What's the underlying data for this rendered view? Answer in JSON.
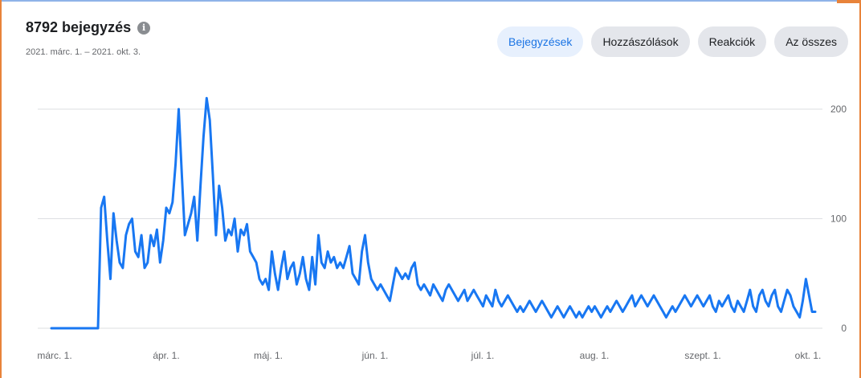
{
  "header": {
    "title": "8792 bejegyzés",
    "info_icon": "info-icon",
    "date_range": "2021. márc. 1. – 2021. okt. 3."
  },
  "tabs": [
    {
      "label": "Bejegyzések",
      "active": true
    },
    {
      "label": "Hozzászólások",
      "active": false
    },
    {
      "label": "Reakciók",
      "active": false
    },
    {
      "label": "Az összes",
      "active": false
    }
  ],
  "colors": {
    "line": "#1877f2",
    "accent": "#1b74e4",
    "frame": "#e8833a",
    "grid": "#dddfe2"
  },
  "chart_data": {
    "type": "line",
    "title": "",
    "xlabel": "",
    "ylabel": "",
    "x_tick_labels": [
      "márc. 1.",
      "ápr. 1.",
      "máj. 1.",
      "jún. 1.",
      "júl. 1.",
      "aug. 1.",
      "szept. 1.",
      "okt. 1."
    ],
    "y_tick_labels": [
      "0",
      "100",
      "200"
    ],
    "ylim": [
      0,
      200
    ],
    "grid": true,
    "y_axis_side": "right",
    "series": [
      {
        "values": [
          0,
          0,
          0,
          0,
          0,
          0,
          0,
          0,
          0,
          0,
          0,
          0,
          0,
          0,
          0,
          0,
          110,
          120,
          80,
          45,
          105,
          80,
          60,
          55,
          85,
          95,
          100,
          70,
          65,
          85,
          55,
          60,
          85,
          75,
          90,
          60,
          80,
          110,
          105,
          115,
          150,
          200,
          140,
          85,
          95,
          105,
          120,
          80,
          130,
          175,
          210,
          190,
          140,
          85,
          130,
          110,
          80,
          90,
          85,
          100,
          70,
          90,
          85,
          95,
          70,
          65,
          60,
          45,
          40,
          45,
          35,
          70,
          50,
          35,
          55,
          70,
          45,
          55,
          60,
          40,
          50,
          65,
          45,
          35,
          65,
          40,
          85,
          60,
          55,
          70,
          60,
          65,
          55,
          60,
          55,
          65,
          75,
          50,
          45,
          40,
          70,
          85,
          60,
          45,
          40,
          35,
          40,
          35,
          30,
          25,
          40,
          55,
          50,
          45,
          50,
          45,
          55,
          60,
          40,
          35,
          40,
          35,
          30,
          40,
          35,
          30,
          25,
          35,
          40,
          35,
          30,
          25,
          30,
          35,
          25,
          30,
          35,
          30,
          25,
          20,
          30,
          25,
          20,
          35,
          25,
          20,
          25,
          30,
          25,
          20,
          15,
          20,
          15,
          20,
          25,
          20,
          15,
          20,
          25,
          20,
          15,
          10,
          15,
          20,
          15,
          10,
          15,
          20,
          15,
          10,
          15,
          10,
          15,
          20,
          15,
          20,
          15,
          10,
          15,
          20,
          15,
          20,
          25,
          20,
          15,
          20,
          25,
          30,
          20,
          25,
          30,
          25,
          20,
          25,
          30,
          25,
          20,
          15,
          10,
          15,
          20,
          15,
          20,
          25,
          30,
          25,
          20,
          25,
          30,
          25,
          20,
          25,
          30,
          20,
          15,
          25,
          20,
          25,
          30,
          20,
          15,
          25,
          20,
          15,
          25,
          35,
          20,
          15,
          30,
          35,
          25,
          20,
          30,
          35,
          20,
          15,
          25,
          35,
          30,
          20,
          15,
          10,
          25,
          45,
          30,
          15,
          15
        ]
      }
    ]
  }
}
